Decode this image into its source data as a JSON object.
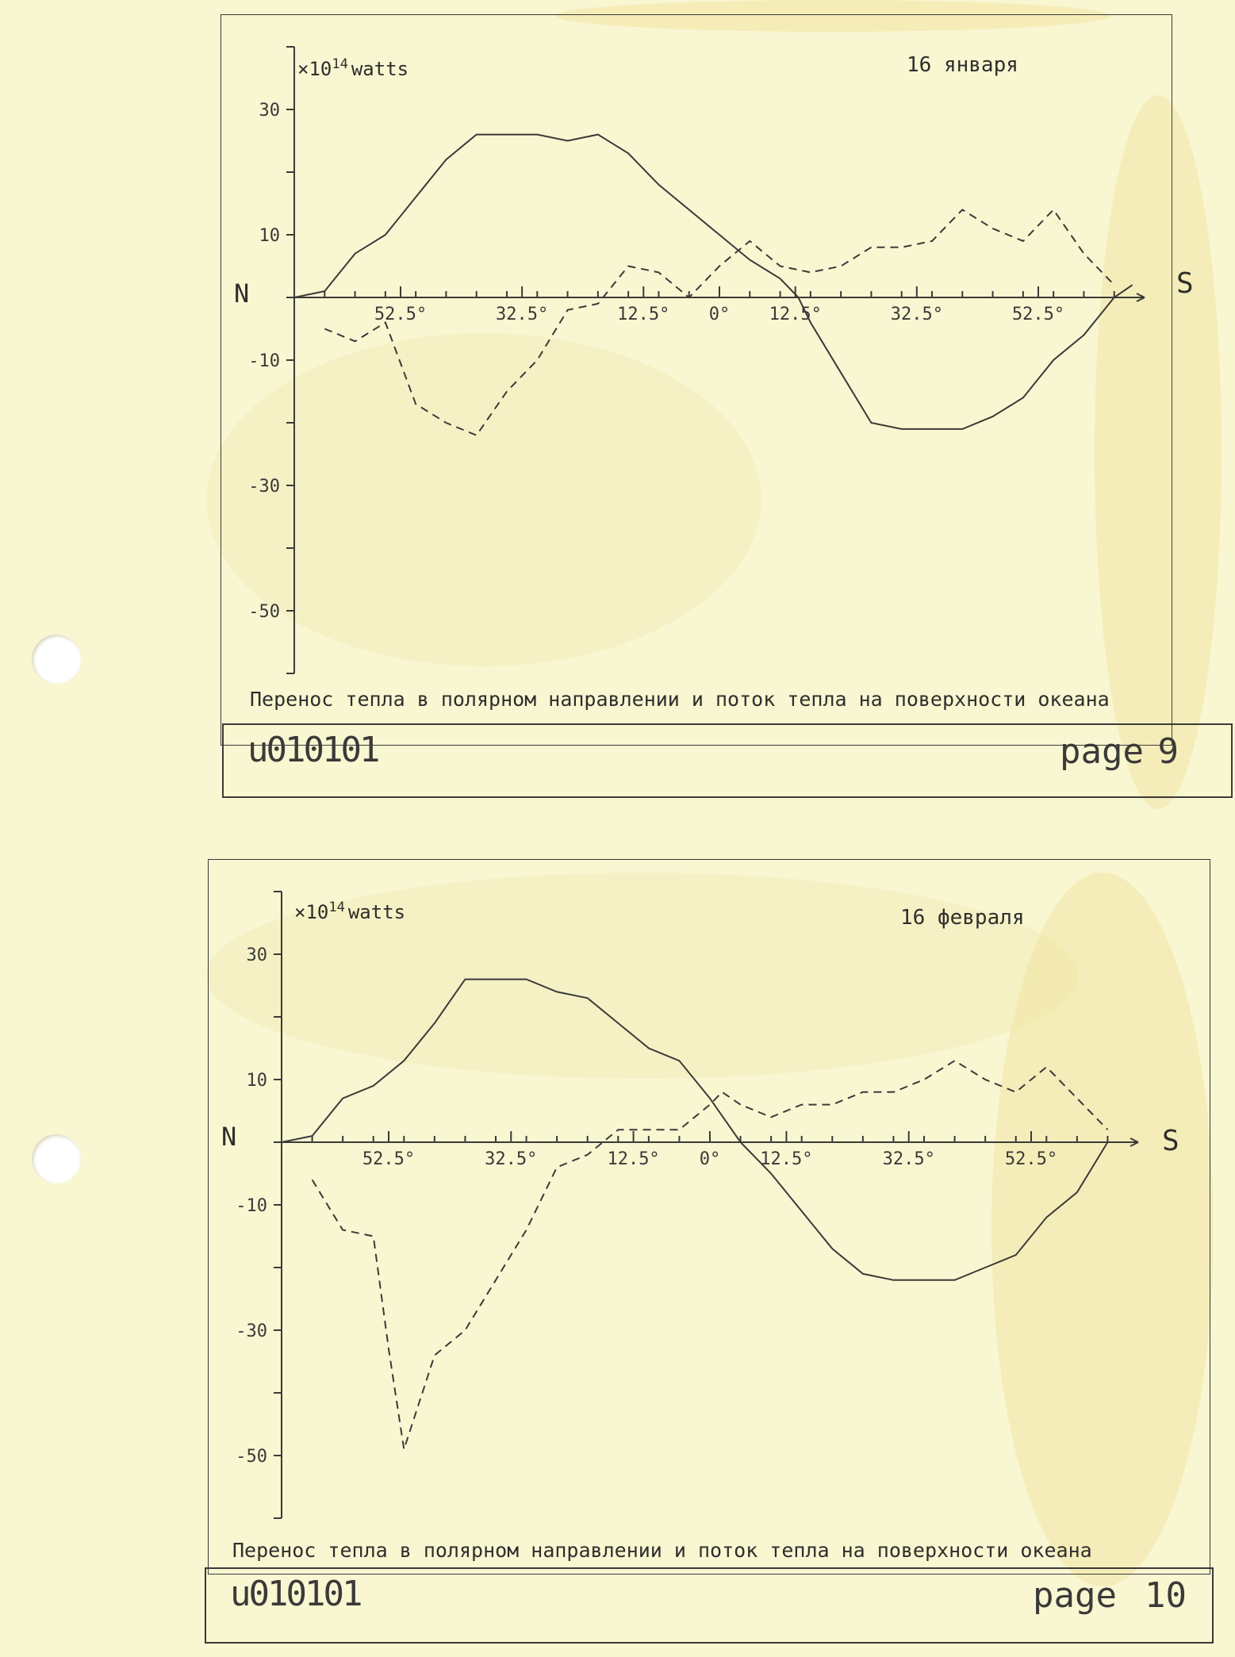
{
  "colors": {
    "paper": "#f9f6d2",
    "ink": "#3a3a38"
  },
  "figures": [
    {
      "unit_label": "×10",
      "unit_exp": "14",
      "unit_word": "watts",
      "date": "16 января",
      "north": "N",
      "south": "S",
      "caption": "Перенос тепла в полярном направлении и поток тепла на поверхности океана",
      "footer_code": "u010101",
      "footer_page_label": "page",
      "footer_page_number": "9"
    },
    {
      "unit_label": "×10",
      "unit_exp": "14",
      "unit_word": "watts",
      "date": "16 февраля",
      "north": "N",
      "south": "S",
      "caption": "Перенос тепла в полярном направлении и поток тепла на поверхности океана",
      "footer_code": "u010101",
      "footer_page_label": "page",
      "footer_page_number": "10"
    }
  ],
  "chart_data": [
    {
      "type": "line",
      "title": "16 января",
      "ylabel": "×10^14 watts",
      "ylim": [
        -60,
        40
      ],
      "yticks": [
        30,
        10,
        -10,
        -30,
        -50
      ],
      "xlim": [
        -70,
        70
      ],
      "xtick_labels": [
        "52.5°",
        "32.5°",
        "12.5°",
        "0°",
        "12.5°",
        "32.5°",
        "52.5°"
      ],
      "xtick_positions": [
        -52.5,
        -32.5,
        -12.5,
        0,
        12.5,
        32.5,
        52.5
      ],
      "series": [
        {
          "style": "solid",
          "points": [
            [
              -70,
              0
            ],
            [
              -65,
              1
            ],
            [
              -60,
              7
            ],
            [
              -55,
              10
            ],
            [
              -50,
              16
            ],
            [
              -45,
              22
            ],
            [
              -40,
              26
            ],
            [
              -35,
              26
            ],
            [
              -30,
              26
            ],
            [
              -25,
              25
            ],
            [
              -20,
              26
            ],
            [
              -15,
              23
            ],
            [
              -10,
              18
            ],
            [
              -5,
              14
            ],
            [
              0,
              10
            ],
            [
              5,
              6
            ],
            [
              10,
              3
            ],
            [
              13,
              0
            ],
            [
              15,
              -4
            ],
            [
              20,
              -12
            ],
            [
              25,
              -20
            ],
            [
              30,
              -21
            ],
            [
              35,
              -21
            ],
            [
              40,
              -21
            ],
            [
              45,
              -19
            ],
            [
              50,
              -16
            ],
            [
              55,
              -10
            ],
            [
              60,
              -6
            ],
            [
              65,
              0
            ],
            [
              68,
              2
            ]
          ]
        },
        {
          "style": "dashed",
          "points": [
            [
              -65,
              -5
            ],
            [
              -60,
              -7
            ],
            [
              -55,
              -4
            ],
            [
              -50,
              -17
            ],
            [
              -45,
              -20
            ],
            [
              -40,
              -22
            ],
            [
              -35,
              -15
            ],
            [
              -30,
              -10
            ],
            [
              -25,
              -2
            ],
            [
              -20,
              -1
            ],
            [
              -15,
              5
            ],
            [
              -10,
              4
            ],
            [
              -5,
              0
            ],
            [
              0,
              5
            ],
            [
              5,
              9
            ],
            [
              10,
              5
            ],
            [
              15,
              4
            ],
            [
              20,
              5
            ],
            [
              25,
              8
            ],
            [
              30,
              8
            ],
            [
              35,
              9
            ],
            [
              40,
              14
            ],
            [
              45,
              11
            ],
            [
              50,
              9
            ],
            [
              55,
              14
            ],
            [
              60,
              7
            ],
            [
              65,
              2
            ]
          ]
        }
      ]
    },
    {
      "type": "line",
      "title": "16 февраля",
      "ylabel": "×10^14 watts",
      "ylim": [
        -60,
        40
      ],
      "yticks": [
        30,
        10,
        -10,
        -30,
        -50
      ],
      "xlim": [
        -70,
        70
      ],
      "xtick_labels": [
        "52.5°",
        "32.5°",
        "12.5°",
        "0°",
        "12.5°",
        "32.5°",
        "52.5°"
      ],
      "xtick_positions": [
        -52.5,
        -32.5,
        -12.5,
        0,
        12.5,
        32.5,
        52.5
      ],
      "series": [
        {
          "style": "solid",
          "points": [
            [
              -70,
              0
            ],
            [
              -65,
              1
            ],
            [
              -60,
              7
            ],
            [
              -55,
              9
            ],
            [
              -50,
              13
            ],
            [
              -45,
              19
            ],
            [
              -40,
              26
            ],
            [
              -35,
              26
            ],
            [
              -30,
              26
            ],
            [
              -25,
              24
            ],
            [
              -20,
              23
            ],
            [
              -15,
              19
            ],
            [
              -10,
              15
            ],
            [
              -5,
              13
            ],
            [
              0,
              7
            ],
            [
              5,
              0
            ],
            [
              10,
              -5
            ],
            [
              15,
              -11
            ],
            [
              20,
              -17
            ],
            [
              25,
              -21
            ],
            [
              30,
              -22
            ],
            [
              35,
              -22
            ],
            [
              40,
              -22
            ],
            [
              45,
              -20
            ],
            [
              50,
              -18
            ],
            [
              55,
              -12
            ],
            [
              60,
              -8
            ],
            [
              65,
              0
            ]
          ]
        },
        {
          "style": "dashed",
          "points": [
            [
              -65,
              -6
            ],
            [
              -60,
              -14
            ],
            [
              -55,
              -15
            ],
            [
              -52.5,
              -33
            ],
            [
              -50,
              -49
            ],
            [
              -45,
              -34
            ],
            [
              -40,
              -30
            ],
            [
              -35,
              -22
            ],
            [
              -30,
              -14
            ],
            [
              -25,
              -4
            ],
            [
              -20,
              -2
            ],
            [
              -15,
              2
            ],
            [
              -10,
              2
            ],
            [
              -5,
              2
            ],
            [
              0,
              6
            ],
            [
              2,
              8
            ],
            [
              5,
              6
            ],
            [
              10,
              4
            ],
            [
              15,
              6
            ],
            [
              20,
              6
            ],
            [
              25,
              8
            ],
            [
              30,
              8
            ],
            [
              35,
              10
            ],
            [
              40,
              13
            ],
            [
              45,
              10
            ],
            [
              50,
              8
            ],
            [
              55,
              12
            ],
            [
              60,
              7
            ],
            [
              65,
              2
            ]
          ]
        }
      ]
    }
  ]
}
